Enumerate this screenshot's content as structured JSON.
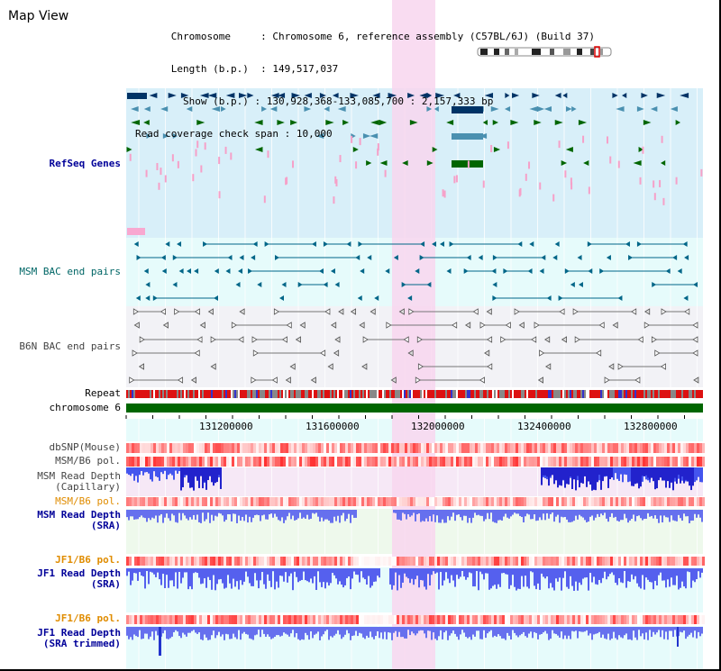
{
  "view": {
    "title": "Map View",
    "info": {
      "chromosome_key": "Chromosome",
      "chromosome_value": "Chromosome 6, reference assembly (C57BL/6J) (Build 37)",
      "length_key": "Length (b.p.)",
      "length_value": "149,517,037",
      "show_key": "Show (b.p.)",
      "show_value": "130,928,368-133,085,700 : 2,157,333 bp",
      "coverage_key": "Read coverage check span",
      "coverage_value": "10,000"
    }
  },
  "tracks": {
    "refseq": "RefSeq Genes",
    "msm_bac": "MSM BAC end pairs",
    "b6n_bac": "B6N BAC end pairs",
    "repeat": "Repeat",
    "chromosome": "chromosome 6",
    "dbsnp": "dbSNP(Mouse)",
    "msm_b6_pol_1": "MSM/B6 pol.",
    "msm_read_depth_cap_1": "MSM Read Depth",
    "msm_read_depth_cap_2": "(Capillary)",
    "msm_b6_pol_2": "MSM/B6 pol.",
    "msm_read_depth_sra_1": "MSM Read Depth",
    "msm_read_depth_sra_2": "(SRA)",
    "jf1_b6_pol_1": "JF1/B6 pol.",
    "jf1_read_depth_sra_1": "JF1 Read Depth",
    "jf1_read_depth_sra_2": "(SRA)",
    "jf1_b6_pol_2": "JF1/B6 pol.",
    "jf1_read_depth_trim_1": "JF1 Read Depth",
    "jf1_read_depth_trim_2": "(SRA trimmed)"
  },
  "axis": {
    "ticks": [
      "131200000",
      "131600000",
      "132000000",
      "132400000",
      "132800000"
    ]
  },
  "colors": {
    "refseq_bg": "#d8eff9",
    "bac_bg": "#e6fbfb",
    "b6n_bg": "#f2f2f6",
    "highlight": "#f8d6ee",
    "label_blue": "#000099",
    "label_teal": "#006666",
    "label_gray": "#444444",
    "label_orange": "#e08c00",
    "depth_blue": "#3333dd",
    "chromosome_green": "#006600"
  }
}
